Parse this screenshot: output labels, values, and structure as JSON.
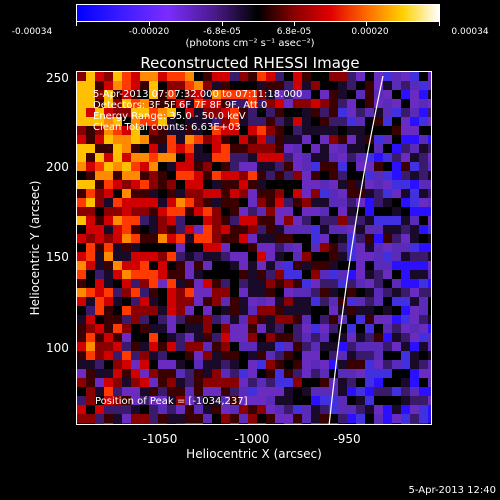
{
  "colorbar": {
    "ticks": [
      "-0.00034",
      "-0.00020",
      "-6.8e-05",
      "6.8e-05",
      "0.00020",
      "0.00034"
    ],
    "units": "(photons cm⁻² s⁻¹ asec⁻²)"
  },
  "title": "Reconstructed RHESSI Image",
  "annotations": {
    "time": "5-Apr-2013 07:07:32.000 to 07:11:18.000",
    "detectors": "Detectors: 3F 5F 6F 7F 8F 9F, Att 0",
    "energy": "Energy Range: 35.0 - 50.0 keV",
    "method": "Clean    Total counts: 6.63E+03",
    "peak": "Position of Peak = [-1034,237]"
  },
  "axes": {
    "xlabel": "Heliocentric X (arcsec)",
    "ylabel": "Heliocentric Y (arcsec)",
    "xticks": [
      "-1050",
      "-1000",
      "-950"
    ],
    "yticks": [
      "250",
      "200",
      "150",
      "100"
    ]
  },
  "timestamp": "5-Apr-2013 12:40",
  "colors": {
    "background": "#000000",
    "limb": "#ffffff"
  }
}
